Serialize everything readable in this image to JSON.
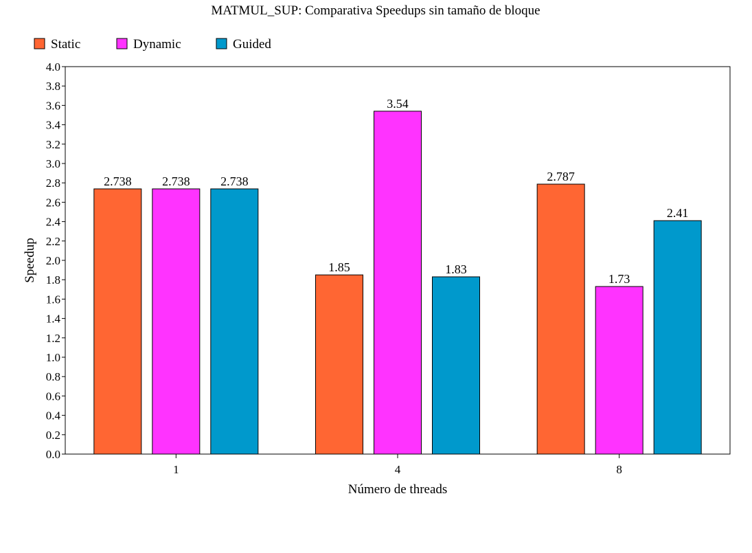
{
  "chart_data": {
    "type": "bar",
    "title": "MATMUL_SUP: Comparativa Speedups sin tamaño de bloque",
    "xlabel": "Número de threads",
    "ylabel": "Speedup",
    "categories": [
      "1",
      "4",
      "8"
    ],
    "series": [
      {
        "name": "Static",
        "color": "#ff6633",
        "values": [
          2.738,
          1.85,
          2.787
        ],
        "labels": [
          "2.738",
          "1.85",
          "2.787"
        ]
      },
      {
        "name": "Dynamic",
        "color": "#ff33ff",
        "values": [
          2.738,
          3.54,
          1.73
        ],
        "labels": [
          "2.738",
          "3.54",
          "1.73"
        ]
      },
      {
        "name": "Guided",
        "color": "#0099cc",
        "values": [
          2.738,
          1.83,
          2.41
        ],
        "labels": [
          "2.738",
          "1.83",
          "2.41"
        ]
      }
    ],
    "ylim": [
      0,
      4.0
    ],
    "yticks": [
      "0.0",
      "0.2",
      "0.4",
      "0.6",
      "0.8",
      "1.0",
      "1.2",
      "1.4",
      "1.6",
      "1.8",
      "2.0",
      "2.2",
      "2.4",
      "2.6",
      "2.8",
      "3.0",
      "3.2",
      "3.4",
      "3.6",
      "3.8",
      "4.0"
    ],
    "grid": false,
    "legend_position": "top-left"
  }
}
